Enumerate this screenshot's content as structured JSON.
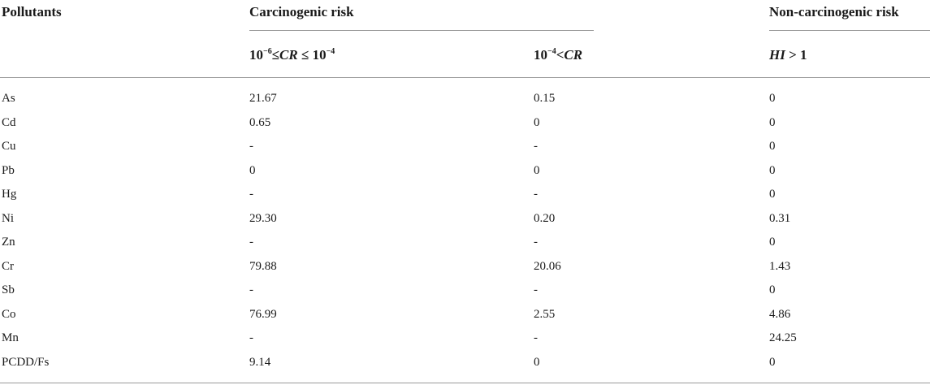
{
  "table": {
    "header": {
      "col_pollutants": "Pollutants",
      "group_carcinogenic": "Carcinogenic risk",
      "group_noncarcinogenic": "Non-carcinogenic risk",
      "sub_cr_range": {
        "base1": "10",
        "exp1": "−6",
        "op1": "≤",
        "var": "CR",
        "op2": " ≤ 10",
        "exp2": "−4"
      },
      "sub_cr_high": {
        "base": "10",
        "exp": "−4",
        "op": "<",
        "var": "CR"
      },
      "sub_hi": {
        "var": "HI",
        "rest": " > 1"
      }
    },
    "rows": [
      [
        "As",
        "21.67",
        "0.15",
        "0"
      ],
      [
        "Cd",
        "0.65",
        "0",
        "0"
      ],
      [
        "Cu",
        "-",
        "-",
        "0"
      ],
      [
        "Pb",
        "0",
        "0",
        "0"
      ],
      [
        "Hg",
        "-",
        "-",
        "0"
      ],
      [
        "Ni",
        "29.30",
        "0.20",
        "0.31"
      ],
      [
        "Zn",
        "-",
        "-",
        "0"
      ],
      [
        "Cr",
        "79.88",
        "20.06",
        "1.43"
      ],
      [
        "Sb",
        "-",
        "-",
        "0"
      ],
      [
        "Co",
        "76.99",
        "2.55",
        "4.86"
      ],
      [
        "Mn",
        "-",
        "-",
        "24.25"
      ],
      [
        "PCDD/Fs",
        "9.14",
        "0",
        "0"
      ]
    ]
  }
}
